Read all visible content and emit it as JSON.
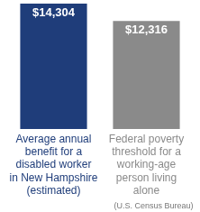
{
  "chart_data": {
    "type": "bar",
    "categories": [
      "Average annual\nbenefit for a\ndisabled worker\nin New Hampshire\n(estimated)",
      "Federal poverty\nthreshold for a\nworking-age\nperson living\nalone"
    ],
    "values": [
      14304,
      12316
    ],
    "value_labels": [
      "$14,304",
      "$12,316"
    ],
    "colors": [
      "#1f3d7a",
      "#8a8a8a"
    ],
    "annotation": "(U.S. Census Bureau)",
    "ylim": [
      0,
      14500
    ],
    "grid": false,
    "data_labels": true,
    "tick_labels": "x"
  }
}
